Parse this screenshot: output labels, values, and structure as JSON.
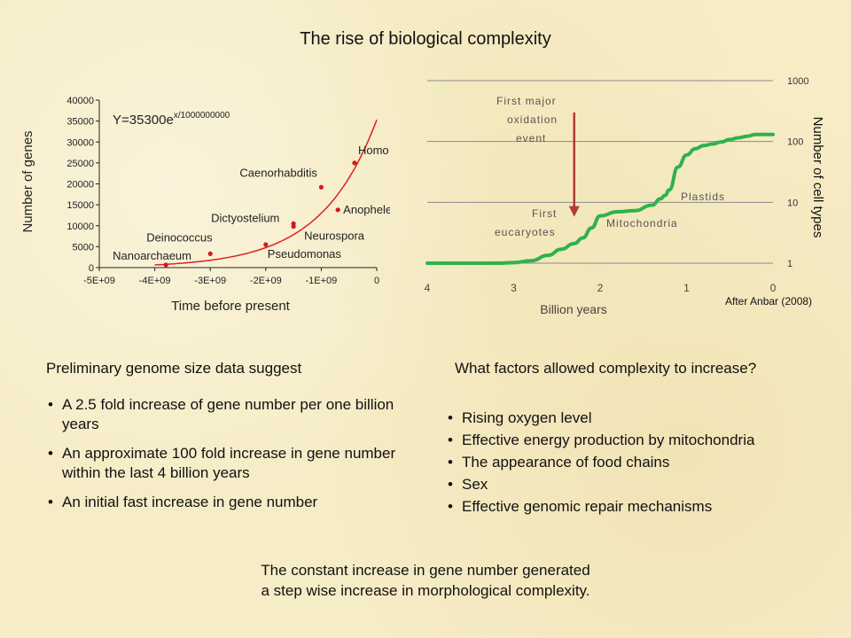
{
  "page": {
    "title": "The rise of biological complexity",
    "left_heading": "Preliminary genome size data suggest",
    "left_bullets": [
      "A 2.5 fold increase of gene number per one billion years",
      "An approximate 100 fold increase in gene number within the last 4 billion years",
      "An initial fast increase in gene number"
    ],
    "right_heading": "What factors allowed complexity to increase?",
    "right_bullets": [
      "Rising oxygen level",
      "Effective energy production by mitochondria",
      "The appearance of food chains",
      "Sex",
      "Effective genomic repair mechanisms"
    ],
    "conclusion_line1": "The constant increase in gene number generated",
    "conclusion_line2": "a step wise increase in morphological complexity."
  },
  "chart_data": [
    {
      "type": "scatter",
      "xlabel": "Time before present",
      "ylabel": "Number of genes",
      "xlim": [
        -5000000000.0,
        0
      ],
      "ylim": [
        0,
        40000
      ],
      "x_ticks": [
        -5000000000.0,
        -4000000000.0,
        -3000000000.0,
        -2000000000.0,
        -1000000000.0,
        0
      ],
      "x_tick_labels": [
        "-5E+09",
        "-4E+09",
        "-3E+09",
        "-2E+09",
        "-1E+09",
        "0"
      ],
      "y_ticks": [
        0,
        5000,
        10000,
        15000,
        20000,
        25000,
        30000,
        35000,
        40000
      ],
      "y_tick_labels": [
        "0",
        "5000",
        "10000",
        "15000",
        "20000",
        "25000",
        "30000",
        "35000",
        "40000"
      ],
      "grid": false,
      "equation": {
        "base": "Y=35300e",
        "exponent": "x/1000000000"
      },
      "fit": {
        "a": 35300,
        "scale": 1000000000,
        "color": "#e02020"
      },
      "points_color": "#d81818",
      "points": [
        {
          "x": -3800000000.0,
          "y": 650,
          "label": "Nanoarchaeum"
        },
        {
          "x": -3000000000.0,
          "y": 3300,
          "label": "Deinococcus"
        },
        {
          "x": -2000000000.0,
          "y": 5500,
          "label": "Pseudomonas"
        },
        {
          "x": -1500000000.0,
          "y": 10500,
          "label": "Dictyostelium"
        },
        {
          "x": -1500000000.0,
          "y": 9800,
          "label": "Neurospora"
        },
        {
          "x": -1000000000.0,
          "y": 19200,
          "label": "Caenorhabditis"
        },
        {
          "x": -700000000.0,
          "y": 13800,
          "label": "Anopheles"
        },
        {
          "x": -400000000.0,
          "y": 25000,
          "label": "Homo"
        }
      ]
    },
    {
      "type": "line",
      "xlabel": "Billion years",
      "ylabel": "Number of cell types",
      "xlim": [
        4,
        0
      ],
      "ylim": [
        1,
        1000
      ],
      "yscale": "log",
      "x_ticks": [
        4,
        3,
        2,
        1,
        0
      ],
      "x_tick_labels": [
        "4",
        "3",
        "2",
        "1",
        "0"
      ],
      "y_ticks": [
        1,
        10,
        100,
        1000
      ],
      "y_tick_labels": [
        "1",
        "10",
        "100",
        "1000"
      ],
      "grid": true,
      "line_color": "#2fb24a",
      "arrow_color": "#b23a3a",
      "series": [
        {
          "x": [
            4.0,
            3.6,
            3.2,
            3.0,
            2.8,
            2.6,
            2.45,
            2.3,
            2.2,
            2.1,
            2.0,
            1.8,
            1.6,
            1.4,
            1.3,
            1.25,
            1.2,
            1.1,
            1.0,
            0.9,
            0.8,
            0.7,
            0.6,
            0.5,
            0.4,
            0.3,
            0.2,
            0.1,
            0.0
          ],
          "y": [
            1,
            1,
            1,
            1.02,
            1.1,
            1.35,
            1.7,
            2.1,
            2.6,
            3.8,
            6,
            7,
            7.3,
            9,
            11.5,
            13,
            16,
            38,
            60,
            76,
            86,
            91,
            98,
            108,
            115,
            122,
            130,
            130,
            130
          ]
        }
      ],
      "annotations": [
        "First major",
        "oxidation",
        "event",
        "First",
        "eucaryotes",
        "Mitochondria",
        "Plastids"
      ],
      "arrow": {
        "x": 2.3,
        "from_y": 300,
        "to_y": 6
      },
      "source": "After Anbar  (2008)"
    }
  ]
}
